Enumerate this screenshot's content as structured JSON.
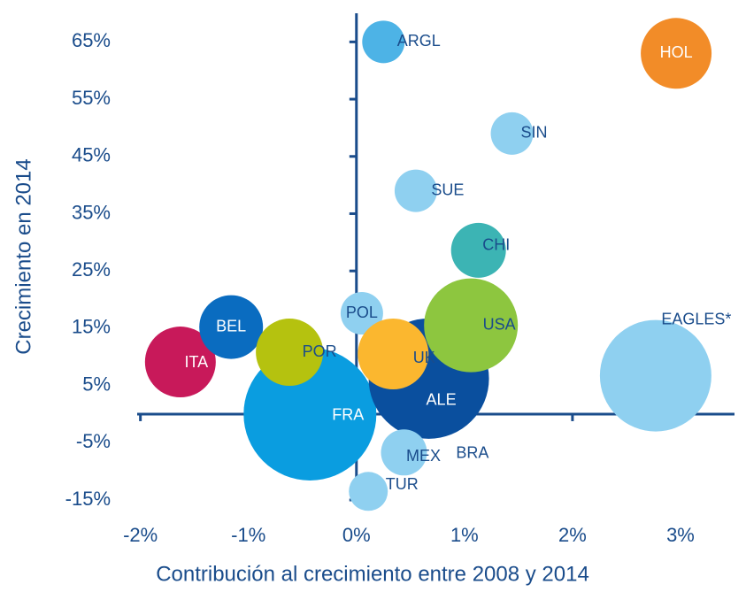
{
  "chart_data": {
    "type": "bubble",
    "x_label": "Contribución al crecimiento entre 2008 y 2014",
    "y_label": "Crecimiento en 2014",
    "labels": [
      "FRA",
      "ALE",
      "EAGLES*",
      "ITA",
      "BEL",
      "POR",
      "POL",
      "USA",
      "UK",
      "MEX",
      "BRA",
      "TUR",
      "CHI",
      "SUE",
      "SIN",
      "ARGL",
      "HOL"
    ],
    "x": [
      -0.43,
      0.67,
      2.77,
      -1.63,
      -1.16,
      -0.62,
      0.05,
      1.06,
      0.34,
      0.44,
      0.46,
      0.11,
      1.13,
      0.55,
      1.44,
      0.25,
      2.96
    ],
    "y": [
      0,
      6.2,
      6.7,
      9.1,
      15.2,
      10.8,
      17.6,
      15.5,
      10.5,
      -6.7,
      -6.3,
      -13.5,
      28.6,
      39,
      49,
      65,
      63
    ],
    "size": [
      75,
      68,
      63,
      40,
      36,
      38,
      24,
      53,
      40,
      26,
      22,
      22,
      31,
      24,
      24,
      24,
      40
    ],
    "colors": [
      "#0a9de0",
      "#0a4f9e",
      "#8fd0f0",
      "#c8195a",
      "#0a6cc0",
      "#b5c20f",
      "#8fd0f0",
      "#8dc63f",
      "#fbb72f",
      "#8fd0f0",
      "#8fd0f0",
      "#8fd0f0",
      "#3cb4b4",
      "#8fd0f0",
      "#8fd0f0",
      "#4db3e6",
      "#f28c28"
    ],
    "label_colors": [
      "#ffffff",
      "#ffffff",
      "#1a4c8b",
      "#ffffff",
      "#ffffff",
      "#1a4c8b",
      "#1a4c8b",
      "#1a4c8b",
      "#1a4c8b",
      "#1a4c8b",
      "#1a4c8b",
      "#1a4c8b",
      "#1a4c8b",
      "#1a4c8b",
      "#1a4c8b",
      "#1a4c8b",
      "#ffffff"
    ],
    "xlim": [
      -2.03,
      3.5
    ],
    "ylim": [
      -15,
      70
    ],
    "xticks": [
      {
        "value": -2,
        "label": "-2%"
      },
      {
        "value": -1,
        "label": "-1%"
      },
      {
        "value": 0,
        "label": "0%"
      },
      {
        "value": 1,
        "label": "1%"
      },
      {
        "value": 2,
        "label": "2%"
      },
      {
        "value": 3,
        "label": "3%"
      }
    ],
    "yticks": [
      {
        "value": -15,
        "label": "-15%"
      },
      {
        "value": -5,
        "label": "-5%"
      },
      {
        "value": 5,
        "label": "5%"
      },
      {
        "value": 15,
        "label": "15%"
      },
      {
        "value": 25,
        "label": "25%"
      },
      {
        "value": 35,
        "label": "35%"
      },
      {
        "value": 45,
        "label": "45%"
      },
      {
        "value": 55,
        "label": "55%"
      },
      {
        "value": 65,
        "label": "65%"
      }
    ],
    "axis_color": "#1a4c8b"
  }
}
